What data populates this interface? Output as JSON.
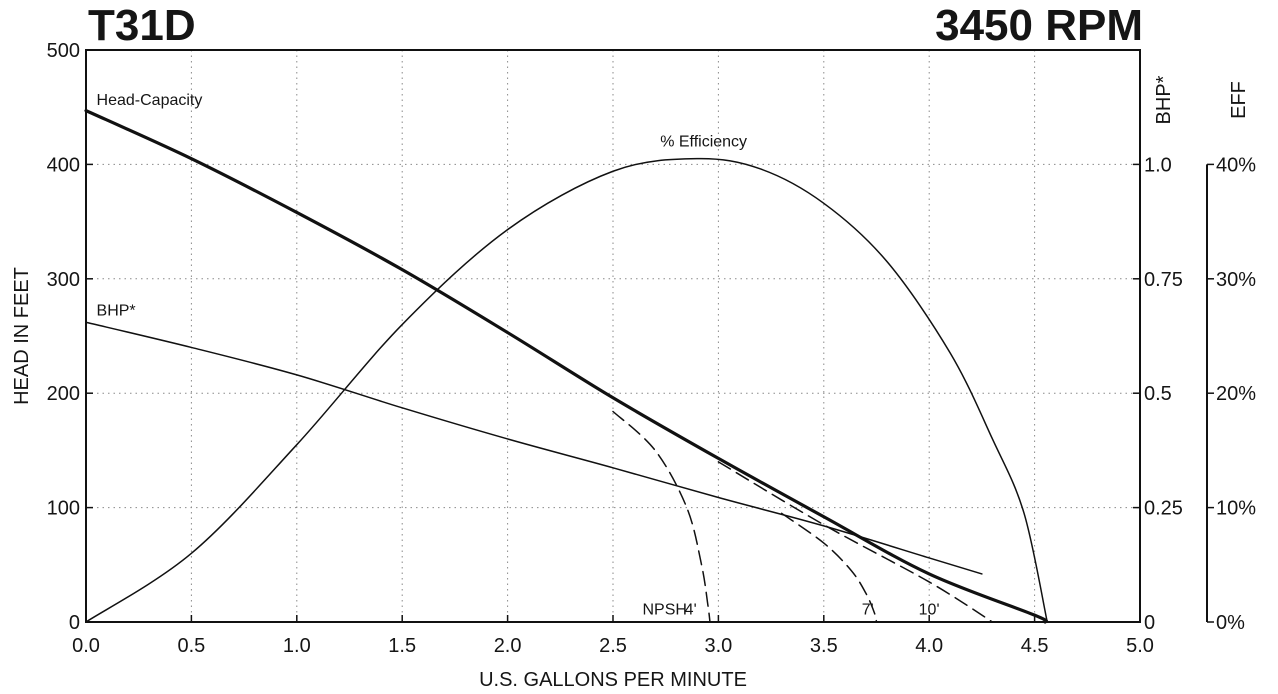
{
  "title_left": "T31D",
  "title_right": "3450 RPM",
  "chart_data": {
    "type": "line",
    "title": "T31D",
    "subtitle": "3450 RPM",
    "xlabel": "U.S. GALLONS PER MINUTE",
    "ylabel": "HEAD IN FEET",
    "y2label": "BHP*",
    "y3label": "EFF",
    "xlim": [
      0,
      5
    ],
    "ylim": [
      0,
      500
    ],
    "y2lim": [
      0,
      1.25
    ],
    "y3lim": [
      0,
      0.5
    ],
    "grid": true,
    "x_ticks": [
      "0.0",
      "0.5",
      "1.0",
      "1.5",
      "2.0",
      "2.5",
      "3.0",
      "3.5",
      "4.0",
      "4.5",
      "5.0"
    ],
    "y_ticks": [
      "0",
      "100",
      "200",
      "300",
      "400",
      "500"
    ],
    "y2_ticks": [
      "0",
      "0.25",
      "0.5",
      "0.75",
      "1.0"
    ],
    "y3_ticks": [
      "0%",
      "10%",
      "20%",
      "30%",
      "40%"
    ],
    "series": [
      {
        "name": "Head-Capacity",
        "axis": "head",
        "style": "thick",
        "x": [
          0,
          0.5,
          1.0,
          1.5,
          2.0,
          2.5,
          3.0,
          3.5,
          4.0,
          4.5,
          4.55
        ],
        "y": [
          447,
          405,
          358,
          308,
          253,
          196,
          143,
          92,
          42,
          6,
          0
        ]
      },
      {
        "name": "BHP*",
        "axis": "bhp",
        "style": "thin",
        "x": [
          0,
          0.5,
          1.0,
          1.5,
          2.0,
          2.5,
          3.0,
          3.5,
          4.0,
          4.25
        ],
        "y": [
          0.655,
          0.6,
          0.54,
          0.468,
          0.4,
          0.337,
          0.272,
          0.21,
          0.14,
          0.105
        ]
      },
      {
        "name": "% Efficiency",
        "axis": "eff",
        "style": "thin",
        "x": [
          0,
          0.5,
          1.0,
          1.5,
          2.0,
          2.5,
          2.9,
          3.2,
          3.5,
          3.8,
          4.1,
          4.3,
          4.45,
          4.56
        ],
        "y": [
          0,
          0.06,
          0.155,
          0.26,
          0.343,
          0.394,
          0.405,
          0.396,
          0.366,
          0.315,
          0.235,
          0.16,
          0.095,
          0
        ]
      },
      {
        "name": "NPSH 4'",
        "axis": "head",
        "style": "dashed",
        "x": [
          2.5,
          2.7,
          2.85,
          2.92,
          2.95,
          2.96
        ],
        "y": [
          184,
          150,
          100,
          50,
          15,
          0
        ]
      },
      {
        "name": "7'",
        "axis": "head",
        "style": "dashed",
        "x": [
          3.3,
          3.5,
          3.63,
          3.7,
          3.74,
          3.75
        ],
        "y": [
          95,
          69,
          45,
          25,
          8,
          0
        ]
      },
      {
        "name": "10'",
        "axis": "head",
        "style": "dashed",
        "x": [
          3.0,
          3.5,
          4.0,
          4.3
        ],
        "y": [
          140,
          85,
          35,
          0
        ]
      }
    ],
    "annotations": [
      {
        "text": "Head-Capacity",
        "x": 0.05,
        "y": 450
      },
      {
        "text": "% Efficiency",
        "x": 2.93,
        "y": 414
      },
      {
        "text": "BHP*",
        "x": 0.05,
        "y": 266
      },
      {
        "text": "NPSH",
        "x": 2.64,
        "y": 5
      },
      {
        "text": "4'",
        "x": 2.84,
        "y": 5
      },
      {
        "text": "7'",
        "x": 3.68,
        "y": 5
      },
      {
        "text": "10'",
        "x": 3.95,
        "y": 5
      }
    ]
  }
}
